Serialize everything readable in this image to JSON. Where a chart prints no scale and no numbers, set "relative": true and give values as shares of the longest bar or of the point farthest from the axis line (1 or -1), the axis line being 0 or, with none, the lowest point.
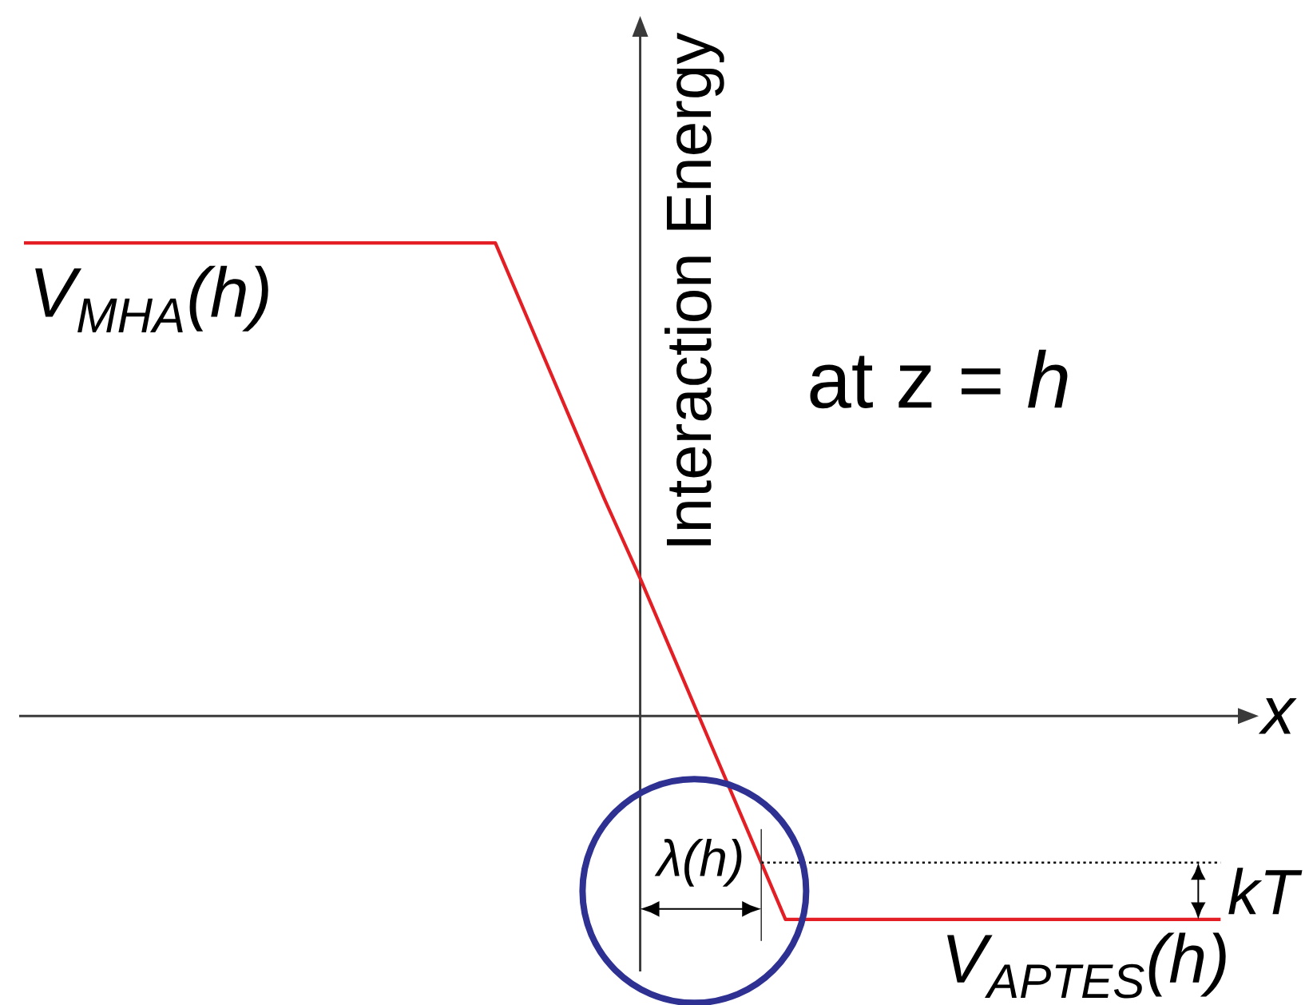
{
  "chart_data": {
    "type": "line",
    "relative": true,
    "xlabel": "x",
    "ylabel": "Interaction Energy",
    "categories": [
      null,
      null,
      null,
      null,
      null,
      null,
      null,
      null,
      null,
      null,
      null,
      null,
      null,
      null,
      null,
      null,
      null,
      null,
      null,
      null,
      null,
      null,
      null,
      null,
      null,
      null,
      null,
      null,
      null,
      null,
      null,
      null,
      null,
      null
    ],
    "values": [
      1,
      1,
      1,
      1,
      1,
      1,
      1,
      1,
      1,
      1,
      1,
      1,
      1,
      1,
      0.82,
      0.64,
      0.46,
      0.29,
      0.11,
      -0.07,
      -0.25,
      -0.43,
      -0.43,
      -0.43,
      -0.43,
      -0.43,
      -0.43,
      -0.43,
      -0.43,
      -0.43,
      -0.43,
      -0.43,
      -0.43,
      -0.43
    ],
    "color": "#e31e24",
    "ref_lines": [
      {
        "axis": "y",
        "value": -0.31,
        "label": "kT",
        "line_style": "dotted",
        "color": "#000000"
      }
    ],
    "annotations": [
      "at z = *h*",
      {
        "text": "V$_{MHA}$(h)",
        "y": 1
      },
      "λ(h)",
      {
        "text": "V$_{APTES}$(h)",
        "y": -0.43
      }
    ]
  }
}
